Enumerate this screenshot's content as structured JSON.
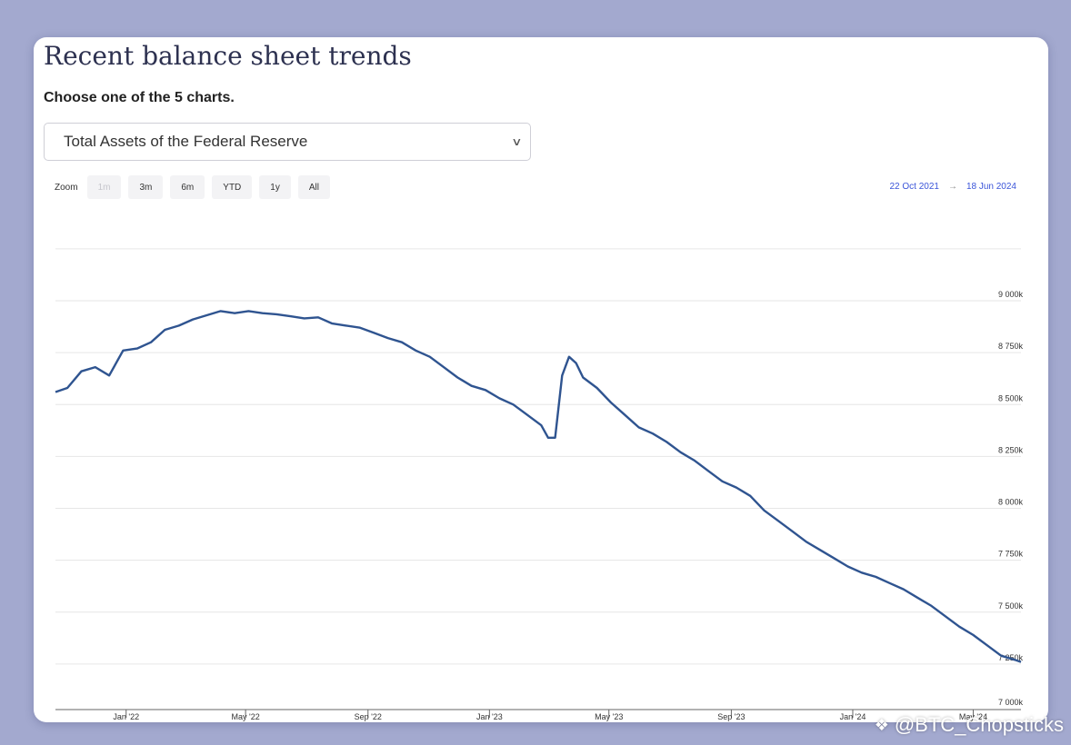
{
  "page": {
    "title": "Recent balance sheet trends",
    "subtitle": "Choose one of the 5 charts.",
    "selected_chart": "Total Assets of the Federal Reserve"
  },
  "zoom": {
    "label": "Zoom",
    "buttons": [
      "1m",
      "3m",
      "6m",
      "YTD",
      "1y",
      "All"
    ],
    "disabled": "1m"
  },
  "range": {
    "from": "22 Oct 2021",
    "arrow": "→",
    "to": "18 Jun 2024"
  },
  "watermark": "@BTC_Chopsticks",
  "colors": {
    "line": "#2f5490",
    "range_text": "#3b55d9",
    "background": "#a3a9cf"
  },
  "chart_data": {
    "type": "line",
    "title": "",
    "xlabel": "",
    "ylabel": "",
    "y_tick_labels": [
      "9 000k",
      "8 750k",
      "8 500k",
      "8 250k",
      "8 000k",
      "7 750k",
      "7 500k",
      "7 250k",
      "7 000k"
    ],
    "x_tick_labels": [
      "Jan '22",
      "May '22",
      "Sep '22",
      "Jan '23",
      "May '23",
      "Sep '23",
      "Jan '24",
      "May '24"
    ],
    "x_range": [
      "2021-10-22",
      "2024-06-18"
    ],
    "ylim": [
      7000,
      9200
    ],
    "grid": true,
    "series": [
      {
        "name": "",
        "points": [
          [
            "2021-10-22",
            8560
          ],
          [
            "2021-11-03",
            8580
          ],
          [
            "2021-11-17",
            8660
          ],
          [
            "2021-12-01",
            8680
          ],
          [
            "2021-12-15",
            8640
          ],
          [
            "2021-12-29",
            8760
          ],
          [
            "2022-01-12",
            8770
          ],
          [
            "2022-01-26",
            8800
          ],
          [
            "2022-02-09",
            8860
          ],
          [
            "2022-02-23",
            8880
          ],
          [
            "2022-03-09",
            8910
          ],
          [
            "2022-03-23",
            8930
          ],
          [
            "2022-04-06",
            8950
          ],
          [
            "2022-04-20",
            8940
          ],
          [
            "2022-05-04",
            8950
          ],
          [
            "2022-05-18",
            8940
          ],
          [
            "2022-06-01",
            8935
          ],
          [
            "2022-06-15",
            8925
          ],
          [
            "2022-06-29",
            8915
          ],
          [
            "2022-07-13",
            8920
          ],
          [
            "2022-07-27",
            8890
          ],
          [
            "2022-08-10",
            8880
          ],
          [
            "2022-08-24",
            8870
          ],
          [
            "2022-09-07",
            8845
          ],
          [
            "2022-09-21",
            8820
          ],
          [
            "2022-10-05",
            8800
          ],
          [
            "2022-10-19",
            8760
          ],
          [
            "2022-11-02",
            8730
          ],
          [
            "2022-11-16",
            8680
          ],
          [
            "2022-11-30",
            8630
          ],
          [
            "2022-12-14",
            8590
          ],
          [
            "2022-12-28",
            8570
          ],
          [
            "2023-01-11",
            8530
          ],
          [
            "2023-01-25",
            8500
          ],
          [
            "2023-02-08",
            8450
          ],
          [
            "2023-02-22",
            8400
          ],
          [
            "2023-03-01",
            8340
          ],
          [
            "2023-03-08",
            8340
          ],
          [
            "2023-03-15",
            8640
          ],
          [
            "2023-03-22",
            8730
          ],
          [
            "2023-03-29",
            8700
          ],
          [
            "2023-04-05",
            8630
          ],
          [
            "2023-04-19",
            8580
          ],
          [
            "2023-05-03",
            8510
          ],
          [
            "2023-05-17",
            8450
          ],
          [
            "2023-05-31",
            8390
          ],
          [
            "2023-06-14",
            8360
          ],
          [
            "2023-06-28",
            8320
          ],
          [
            "2023-07-12",
            8270
          ],
          [
            "2023-07-26",
            8230
          ],
          [
            "2023-08-09",
            8180
          ],
          [
            "2023-08-23",
            8130
          ],
          [
            "2023-09-06",
            8100
          ],
          [
            "2023-09-20",
            8060
          ],
          [
            "2023-10-04",
            7990
          ],
          [
            "2023-10-18",
            7940
          ],
          [
            "2023-11-01",
            7890
          ],
          [
            "2023-11-15",
            7840
          ],
          [
            "2023-11-29",
            7800
          ],
          [
            "2023-12-13",
            7760
          ],
          [
            "2023-12-27",
            7720
          ],
          [
            "2024-01-10",
            7690
          ],
          [
            "2024-01-24",
            7670
          ],
          [
            "2024-02-07",
            7640
          ],
          [
            "2024-02-21",
            7610
          ],
          [
            "2024-03-06",
            7570
          ],
          [
            "2024-03-20",
            7530
          ],
          [
            "2024-04-03",
            7480
          ],
          [
            "2024-04-17",
            7430
          ],
          [
            "2024-05-01",
            7390
          ],
          [
            "2024-05-15",
            7340
          ],
          [
            "2024-05-29",
            7290
          ],
          [
            "2024-06-12",
            7270
          ],
          [
            "2024-06-18",
            7260
          ]
        ]
      }
    ]
  }
}
